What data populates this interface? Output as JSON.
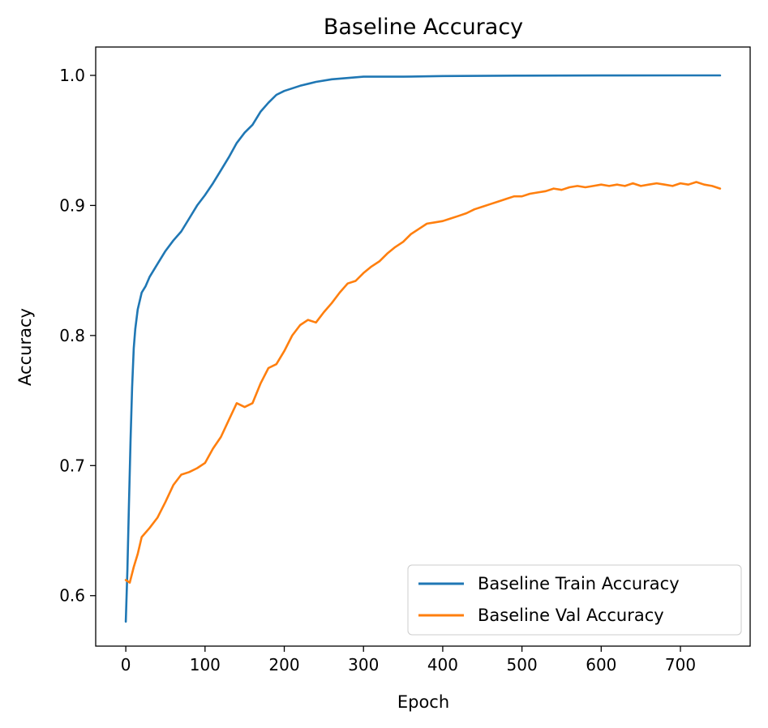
{
  "chart_data": {
    "type": "line",
    "title": "Baseline Accuracy",
    "xlabel": "Epoch",
    "ylabel": "Accuracy",
    "xlim": [
      -38,
      788
    ],
    "ylim": [
      0.5612,
      1.0218
    ],
    "xticks": [
      0,
      100,
      200,
      300,
      400,
      500,
      600,
      700
    ],
    "yticks": [
      0.6,
      0.7,
      0.8,
      0.9,
      1.0
    ],
    "xtick_labels": [
      "0",
      "100",
      "200",
      "300",
      "400",
      "500",
      "600",
      "700"
    ],
    "ytick_labels": [
      "0.6",
      "0.7",
      "0.8",
      "0.9",
      "1.0"
    ],
    "grid": false,
    "legend_position": "lower-right",
    "series": [
      {
        "name": "Baseline Train Accuracy",
        "color": "#1f77b4",
        "x": [
          0,
          2,
          4,
          6,
          8,
          10,
          12,
          15,
          20,
          25,
          30,
          40,
          50,
          60,
          70,
          80,
          90,
          100,
          110,
          120,
          130,
          140,
          150,
          160,
          170,
          180,
          190,
          200,
          220,
          240,
          260,
          280,
          300,
          350,
          400,
          500,
          600,
          700,
          750
        ],
        "y": [
          0.58,
          0.62,
          0.67,
          0.72,
          0.76,
          0.79,
          0.805,
          0.82,
          0.833,
          0.838,
          0.845,
          0.855,
          0.865,
          0.873,
          0.88,
          0.89,
          0.9,
          0.908,
          0.917,
          0.927,
          0.937,
          0.948,
          0.956,
          0.962,
          0.972,
          0.979,
          0.985,
          0.988,
          0.992,
          0.995,
          0.997,
          0.998,
          0.999,
          0.999,
          0.9995,
          0.9998,
          0.9999,
          1.0,
          1.0
        ]
      },
      {
        "name": "Baseline Val Accuracy",
        "color": "#ff7f0e",
        "x": [
          0,
          5,
          10,
          15,
          20,
          30,
          40,
          50,
          60,
          70,
          80,
          90,
          100,
          110,
          120,
          130,
          140,
          150,
          160,
          170,
          180,
          190,
          200,
          210,
          220,
          230,
          240,
          250,
          260,
          270,
          280,
          290,
          300,
          310,
          320,
          330,
          340,
          350,
          360,
          370,
          380,
          390,
          400,
          410,
          420,
          430,
          440,
          450,
          460,
          470,
          480,
          490,
          500,
          510,
          520,
          530,
          540,
          550,
          560,
          570,
          580,
          590,
          600,
          610,
          620,
          630,
          640,
          650,
          660,
          670,
          680,
          690,
          700,
          710,
          720,
          730,
          740,
          750
        ],
        "y": [
          0.612,
          0.61,
          0.622,
          0.632,
          0.645,
          0.652,
          0.66,
          0.672,
          0.685,
          0.693,
          0.695,
          0.698,
          0.702,
          0.713,
          0.722,
          0.735,
          0.748,
          0.745,
          0.748,
          0.763,
          0.775,
          0.778,
          0.788,
          0.8,
          0.808,
          0.812,
          0.81,
          0.818,
          0.825,
          0.833,
          0.84,
          0.842,
          0.848,
          0.853,
          0.857,
          0.863,
          0.868,
          0.872,
          0.878,
          0.882,
          0.886,
          0.887,
          0.888,
          0.89,
          0.892,
          0.894,
          0.897,
          0.899,
          0.901,
          0.903,
          0.905,
          0.907,
          0.907,
          0.909,
          0.91,
          0.911,
          0.913,
          0.912,
          0.914,
          0.915,
          0.914,
          0.915,
          0.916,
          0.915,
          0.916,
          0.915,
          0.917,
          0.915,
          0.916,
          0.917,
          0.916,
          0.915,
          0.917,
          0.916,
          0.918,
          0.916,
          0.915,
          0.913
        ]
      }
    ]
  }
}
